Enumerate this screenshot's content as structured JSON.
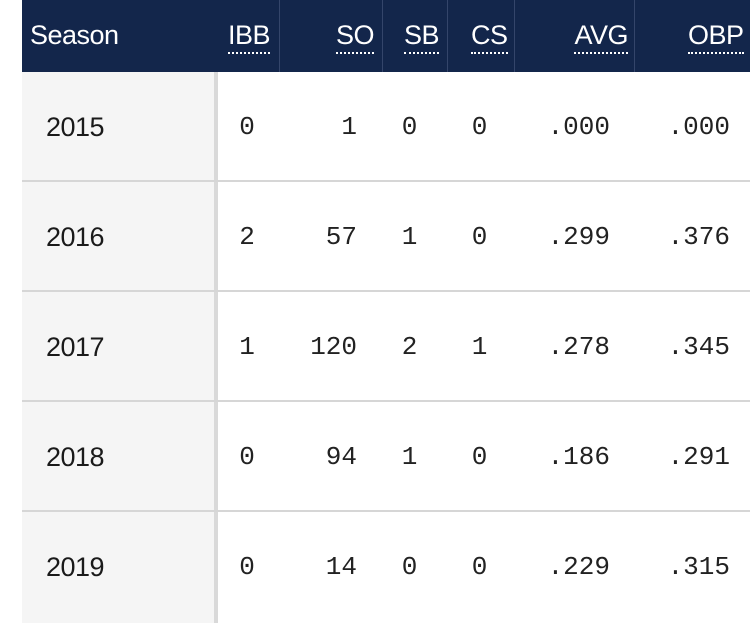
{
  "table": {
    "columns": [
      {
        "key": "season",
        "label": "Season",
        "abbr": false
      },
      {
        "key": "ibb",
        "label": "IBB",
        "abbr": true
      },
      {
        "key": "so",
        "label": "SO",
        "abbr": true
      },
      {
        "key": "sb",
        "label": "SB",
        "abbr": true
      },
      {
        "key": "cs",
        "label": "CS",
        "abbr": true
      },
      {
        "key": "avg",
        "label": "AVG",
        "abbr": true
      },
      {
        "key": "obp",
        "label": "OBP",
        "abbr": true
      }
    ],
    "rows": [
      {
        "season": "2015",
        "ibb": "0",
        "so": "1",
        "sb": "0",
        "cs": "0",
        "avg": ".000",
        "obp": ".000"
      },
      {
        "season": "2016",
        "ibb": "2",
        "so": "57",
        "sb": "1",
        "cs": "0",
        "avg": ".299",
        "obp": ".376"
      },
      {
        "season": "2017",
        "ibb": "1",
        "so": "120",
        "sb": "2",
        "cs": "1",
        "avg": ".278",
        "obp": ".345"
      },
      {
        "season": "2018",
        "ibb": "0",
        "so": "94",
        "sb": "1",
        "cs": "0",
        "avg": ".186",
        "obp": ".291"
      },
      {
        "season": "2019",
        "ibb": "0",
        "so": "14",
        "sb": "0",
        "cs": "0",
        "avg": ".229",
        "obp": ".315"
      }
    ]
  },
  "colors": {
    "header_bg": "#13264b",
    "header_text": "#ffffff",
    "season_bg": "#f5f5f5",
    "row_border": "#d6d6d6"
  }
}
